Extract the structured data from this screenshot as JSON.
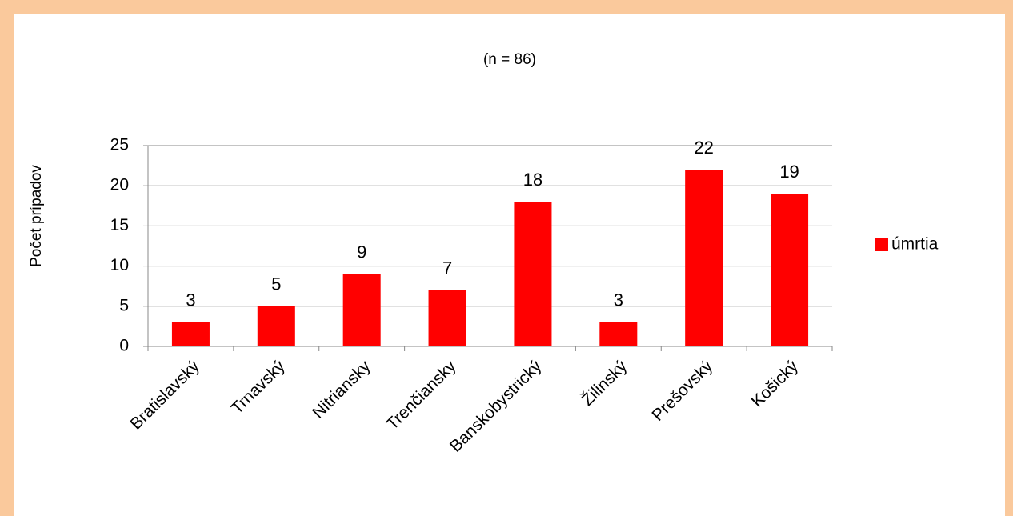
{
  "chart_data": {
    "type": "bar",
    "title": "(n = 86)",
    "y_label": "Počet prípadov",
    "categories": [
      "Bratislavský",
      "Trnavský",
      "Nitriansky",
      "Trenčiansky",
      "Banskobystrický",
      "Žilinský",
      "Prešovský",
      "Košický"
    ],
    "series": [
      {
        "name": "úmrtia",
        "color": "#ff0000",
        "values": [
          3,
          5,
          9,
          7,
          18,
          3,
          22,
          19
        ]
      }
    ],
    "ylim": [
      0,
      25
    ],
    "yticks": [
      0,
      5,
      10,
      15,
      20,
      25
    ],
    "grid": true,
    "legend": "right"
  }
}
